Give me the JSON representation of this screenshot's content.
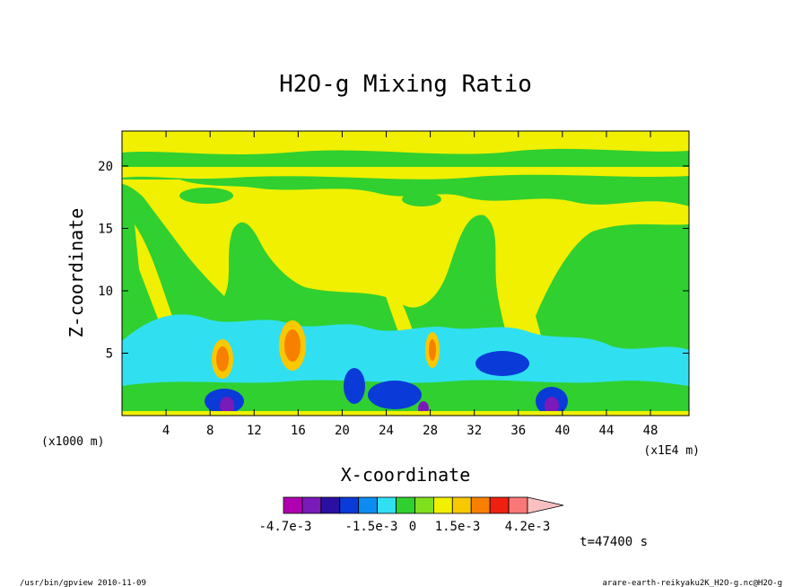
{
  "chart_data": {
    "type": "heatmap",
    "title": "H2O-g Mixing Ratio",
    "xlabel": "X-coordinate",
    "ylabel": "Z-coordinate",
    "x_unit_left": "(x1000 m)",
    "x_unit_right": "(x1E4 m)",
    "xlim": [
      0,
      51.5
    ],
    "ylim": [
      0,
      22.8
    ],
    "x_ticks": [
      "4",
      "8",
      "12",
      "16",
      "20",
      "24",
      "28",
      "32",
      "36",
      "40",
      "44",
      "48"
    ],
    "x_tick_values": [
      4,
      8,
      12,
      16,
      20,
      24,
      28,
      32,
      36,
      40,
      44,
      48
    ],
    "y_ticks": [
      "5",
      "10",
      "15",
      "20"
    ],
    "y_tick_values": [
      5,
      10,
      15,
      20
    ],
    "colorbar": {
      "colors": [
        "#b000b0",
        "#7a1ab8",
        "#2a10a0",
        "#0a3ad8",
        "#0c8cf0",
        "#30e0f0",
        "#30d030",
        "#80e020",
        "#f0f000",
        "#f8c800",
        "#f88000",
        "#f02010",
        "#f87878",
        "#f8c0c0"
      ],
      "labels": [
        "-4.7e-3",
        "-1.5e-3",
        "0",
        "1.5e-3",
        "4.2e-3"
      ]
    },
    "levels": [
      -0.0047,
      -0.0015,
      0,
      0.0015,
      0.0042
    ],
    "time_label": "t=47400 s",
    "regions": [
      {
        "name": "upper-yellow-band",
        "level": "positive-small",
        "color": "#f0f000"
      },
      {
        "name": "mid-green-zone",
        "level": "near-zero",
        "color": "#30d030"
      },
      {
        "name": "low-cyan-zone",
        "level": "negative-small",
        "color": "#30e0f0"
      },
      {
        "name": "peak-orange-cells",
        "level": "positive-large",
        "color": "#f88000"
      },
      {
        "name": "trough-purple-cells",
        "level": "negative-large",
        "color": "#7a1ab8"
      }
    ]
  },
  "footer": {
    "left": "/usr/bin/gpview   2010-11-09",
    "right": "arare-earth-reikyaku2K_H2O-g.nc@H2O-g"
  }
}
